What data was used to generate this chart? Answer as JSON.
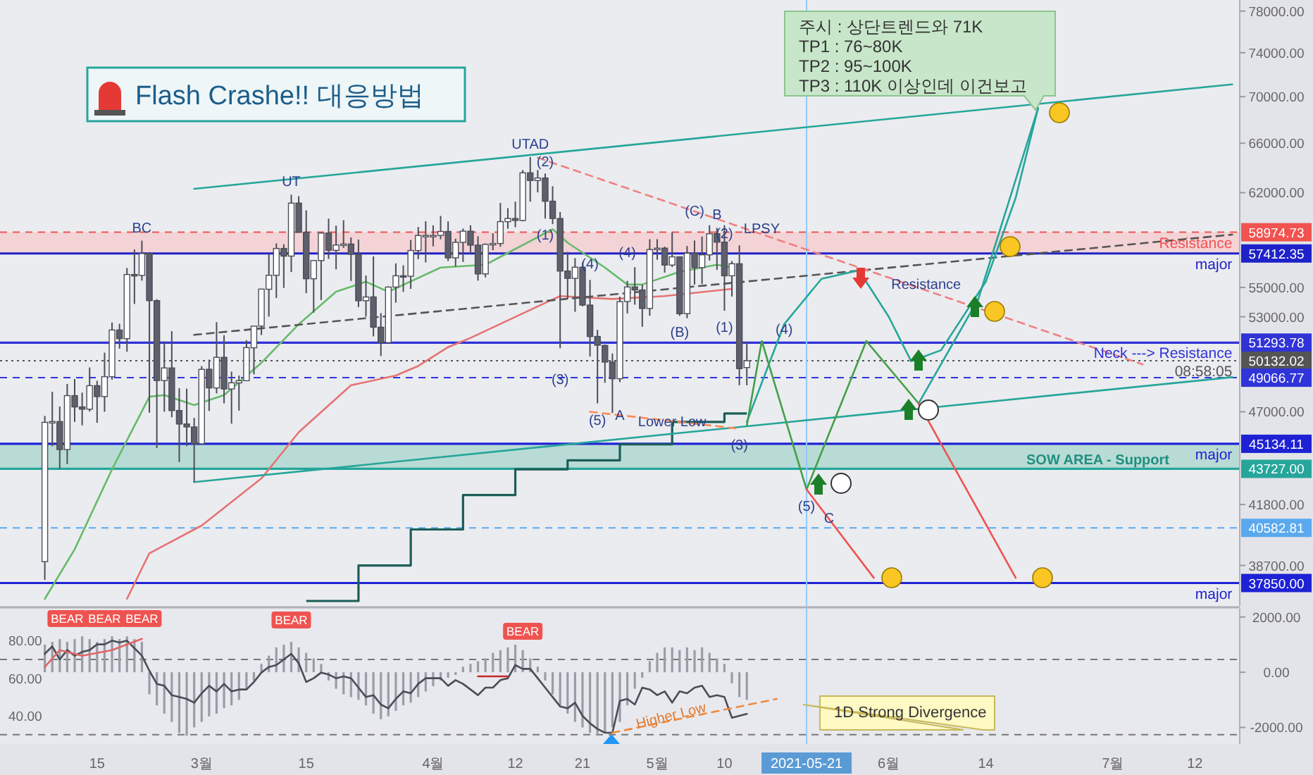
{
  "chart_data": [
    {
      "type": "candlestick",
      "title": "Flash Crashe!!  대응방법",
      "log": "y",
      "tick_labels": "y",
      "xlim": [
        "2021-02-02",
        "2021-07-18"
      ],
      "ylim": [
        36770,
        79100
      ],
      "yticks": [
        {
          "value": 78000,
          "label": "78000.00"
        },
        {
          "value": 74000,
          "label": "74000.00"
        },
        {
          "value": 70000,
          "label": "70000.00"
        },
        {
          "value": 66000,
          "label": "66000.00"
        },
        {
          "value": 62000,
          "label": "62000.00"
        },
        {
          "value": 55000,
          "label": "55000.00"
        },
        {
          "value": 53000,
          "label": "53000.00"
        },
        {
          "value": 47000,
          "label": "47000.00"
        },
        {
          "value": 41800,
          "label": "41800.00"
        },
        {
          "value": 38700,
          "label": "38700.00"
        }
      ],
      "x": [
        "2021-02-08",
        "2021-02-09",
        "2021-02-10",
        "2021-02-11",
        "2021-02-12",
        "2021-02-13",
        "2021-02-14",
        "2021-02-15",
        "2021-02-16",
        "2021-02-17",
        "2021-02-18",
        "2021-02-19",
        "2021-02-20",
        "2021-02-21",
        "2021-02-22",
        "2021-02-23",
        "2021-02-24",
        "2021-02-25",
        "2021-02-26",
        "2021-02-27",
        "2021-02-28",
        "2021-03-01",
        "2021-03-02",
        "2021-03-03",
        "2021-03-04",
        "2021-03-05",
        "2021-03-06",
        "2021-03-07",
        "2021-03-08",
        "2021-03-09",
        "2021-03-10",
        "2021-03-11",
        "2021-03-12",
        "2021-03-13",
        "2021-03-14",
        "2021-03-15",
        "2021-03-16",
        "2021-03-17",
        "2021-03-18",
        "2021-03-19",
        "2021-03-20",
        "2021-03-21",
        "2021-03-22",
        "2021-03-23",
        "2021-03-24",
        "2021-03-25",
        "2021-03-26",
        "2021-03-27",
        "2021-03-28",
        "2021-03-29",
        "2021-03-30",
        "2021-03-31",
        "2021-04-01",
        "2021-04-02",
        "2021-04-03",
        "2021-04-04",
        "2021-04-05",
        "2021-04-06",
        "2021-04-07",
        "2021-04-08",
        "2021-04-09",
        "2021-04-10",
        "2021-04-11",
        "2021-04-12",
        "2021-04-13",
        "2021-04-14",
        "2021-04-15",
        "2021-04-16",
        "2021-04-17",
        "2021-04-18",
        "2021-04-19",
        "2021-04-20",
        "2021-04-21",
        "2021-04-22",
        "2021-04-23",
        "2021-04-24",
        "2021-04-25",
        "2021-04-26",
        "2021-04-27",
        "2021-04-28",
        "2021-04-29",
        "2021-04-30",
        "2021-05-01",
        "2021-05-02",
        "2021-05-03",
        "2021-05-04",
        "2021-05-05",
        "2021-05-06",
        "2021-05-07",
        "2021-05-08",
        "2021-05-09",
        "2021-05-10",
        "2021-05-11",
        "2021-05-12",
        "2021-05-13"
      ],
      "ohlc": [
        [
          38886,
          46750,
          38000,
          46374
        ],
        [
          46374,
          48200,
          45000,
          46420
        ],
        [
          46420,
          47310,
          43727,
          44807
        ],
        [
          44807,
          48678,
          43994,
          47969
        ],
        [
          47969,
          48985,
          46400,
          47287
        ],
        [
          47288,
          48150,
          46202,
          47153
        ],
        [
          47153,
          49707,
          47014,
          48577
        ],
        [
          48577,
          48876,
          46347,
          47911
        ],
        [
          47911,
          50645,
          47000,
          49133
        ],
        [
          49133,
          52619,
          48947,
          52119
        ],
        [
          52117,
          52530,
          50901,
          51552
        ],
        [
          51552,
          56368,
          50710,
          55906
        ],
        [
          55906,
          57700,
          53863,
          55841
        ],
        [
          55842,
          58352,
          55477,
          57408
        ],
        [
          57412,
          57508,
          46943,
          54087
        ],
        [
          54087,
          54183,
          44892,
          48891
        ],
        [
          48891,
          51374,
          47003,
          49676
        ],
        [
          49677,
          52041,
          46674,
          47073
        ],
        [
          47074,
          48424,
          44106,
          46276
        ],
        [
          46277,
          48395,
          45000,
          46106
        ],
        [
          46104,
          46638,
          43000,
          45135
        ],
        [
          45134,
          49790,
          45115,
          49587
        ],
        [
          49595,
          50200,
          47047,
          48440
        ],
        [
          48436,
          52640,
          48100,
          50349
        ],
        [
          50349,
          51773,
          47500,
          48374
        ],
        [
          48375,
          49448,
          46300,
          48751
        ],
        [
          48746,
          49200,
          47070,
          48882
        ],
        [
          48882,
          51450,
          48882,
          50971
        ],
        [
          50959,
          52402,
          49274,
          52375
        ],
        [
          52376,
          54900,
          51789,
          54884
        ],
        [
          54874,
          57387,
          53005,
          55851
        ],
        [
          55851,
          58150,
          54272,
          57773
        ],
        [
          57773,
          58081,
          54962,
          57221
        ],
        [
          57222,
          61844,
          56078,
          61188
        ],
        [
          61188,
          61724,
          58966,
          58968
        ],
        [
          58976,
          60633,
          54600,
          55605
        ],
        [
          55605,
          56938,
          53271,
          56900
        ],
        [
          56900,
          58981,
          54120,
          58912
        ],
        [
          58912,
          60000,
          57023,
          57648
        ],
        [
          57641,
          59468,
          56270,
          58030
        ],
        [
          58030,
          59880,
          57820,
          58102
        ],
        [
          58101,
          58589,
          55450,
          57351
        ],
        [
          57351,
          58430,
          53650,
          54083
        ],
        [
          54084,
          55830,
          53000,
          54340
        ],
        [
          54342,
          57200,
          51700,
          52303
        ],
        [
          52303,
          53240,
          50427,
          51293
        ],
        [
          51293,
          55073,
          51214,
          55025
        ],
        [
          55026,
          56700,
          53950,
          55817
        ],
        [
          55817,
          56559,
          54691,
          55777
        ],
        [
          55782,
          58400,
          54900,
          57628
        ],
        [
          57628,
          59368,
          57000,
          58730
        ],
        [
          58731,
          59800,
          56769,
          58736
        ],
        [
          58736,
          59490,
          57935,
          58736
        ],
        [
          58736,
          60200,
          58450,
          59031
        ],
        [
          59031,
          59791,
          56863,
          57094
        ],
        [
          57095,
          58493,
          56478,
          58226
        ],
        [
          58227,
          59247,
          56800,
          59054
        ],
        [
          59054,
          59496,
          57413,
          58020
        ],
        [
          58020,
          58678,
          55473,
          55948
        ],
        [
          55947,
          58153,
          55700,
          58077
        ],
        [
          58077,
          58894,
          57654,
          58142
        ],
        [
          58142,
          61200,
          57903,
          59769
        ],
        [
          59770,
          60800,
          59238,
          60007
        ],
        [
          60002,
          61300,
          59350,
          59861
        ],
        [
          59861,
          63800,
          59791,
          63575
        ],
        [
          63576,
          64854,
          61301,
          62959
        ],
        [
          62960,
          63800,
          62020,
          63160
        ],
        [
          63159,
          63520,
          60000,
          61334
        ],
        [
          61334,
          62506,
          59580,
          60006
        ],
        [
          60007,
          60499,
          50931,
          56150
        ],
        [
          56150,
          57526,
          54221,
          55633
        ],
        [
          55633,
          57076,
          53329,
          56425
        ],
        [
          56425,
          56757,
          53695,
          53787
        ],
        [
          53787,
          55521,
          50400,
          51690
        ],
        [
          51695,
          52130,
          47500,
          51125
        ],
        [
          51110,
          51167,
          48753,
          50047
        ],
        [
          50048,
          50591,
          46930,
          49004
        ],
        [
          49004,
          54356,
          48800,
          54021
        ],
        [
          54030,
          55460,
          53222,
          55033
        ],
        [
          55033,
          56428,
          53813,
          54824
        ],
        [
          54824,
          55195,
          52330,
          53555
        ],
        [
          53555,
          58458,
          53068,
          57697
        ],
        [
          57697,
          58458,
          56956,
          57797
        ],
        [
          57798,
          57911,
          56035,
          56578
        ],
        [
          56578,
          58981,
          56435,
          57169
        ],
        [
          57169,
          57200,
          53057,
          53200
        ],
        [
          53205,
          57963,
          52900,
          57436
        ],
        [
          57436,
          58360,
          55200,
          56393
        ],
        [
          56393,
          58650,
          55241,
          57314
        ],
        [
          57315,
          59500,
          56900,
          58862
        ],
        [
          58866,
          59300,
          56235,
          58240
        ],
        [
          58240,
          59500,
          53400,
          55816
        ],
        [
          55816,
          56862,
          54370,
          56670
        ],
        [
          56671,
          58000,
          48600,
          49631
        ],
        [
          49700,
          51300,
          48600,
          50132
        ]
      ],
      "series": [
        {
          "type": "line",
          "color": "#66bb6a",
          "x": [
            "2021-02-08",
            "2021-02-12",
            "2021-02-17",
            "2021-02-22",
            "2021-02-24",
            "2021-02-28",
            "2021-03-04",
            "2021-03-09",
            "2021-03-14",
            "2021-03-19",
            "2021-03-23",
            "2021-03-26",
            "2021-04-02",
            "2021-04-08",
            "2021-04-17",
            "2021-04-19",
            "2021-04-24",
            "2021-04-27",
            "2021-04-29",
            "2021-05-04",
            "2021-05-09",
            "2021-05-11"
          ],
          "values": [
            37100,
            39500,
            43700,
            47900,
            48000,
            47400,
            48000,
            50000,
            52500,
            54700,
            55400,
            54700,
            56400,
            56600,
            59200,
            58200,
            56400,
            55200,
            55200,
            56100,
            56600,
            56400
          ]
        },
        {
          "type": "line",
          "color": "#e57373",
          "x": [
            "2021-02-19",
            "2021-02-22",
            "2021-03-01",
            "2021-03-09",
            "2021-03-14",
            "2021-03-21",
            "2021-03-27",
            "2021-03-30",
            "2021-04-03",
            "2021-04-06",
            "2021-04-15",
            "2021-04-18",
            "2021-04-25",
            "2021-05-02",
            "2021-05-11"
          ],
          "values": [
            37100,
            39300,
            40700,
            43200,
            45800,
            48600,
            49200,
            49800,
            51000,
            51600,
            53700,
            54400,
            54200,
            54400,
            54900
          ]
        },
        {
          "type": "step",
          "color": "#1b5e57",
          "x": [
            "2021-03-15",
            "2021-03-22",
            "2021-03-29",
            "2021-04-05",
            "2021-04-12",
            "2021-04-19",
            "2021-04-26",
            "2021-05-03",
            "2021-05-10",
            "2021-05-13"
          ],
          "values": [
            37000,
            38700,
            40500,
            42300,
            43700,
            44200,
            45100,
            46400,
            46900,
            46900
          ]
        },
        {
          "type": "line",
          "color": "#26a69a",
          "x": [
            "2021-02-28",
            "2021-07-17"
          ],
          "values": [
            62300,
            71100
          ]
        },
        {
          "type": "line",
          "color": "#26a69a",
          "x": [
            "2021-02-28",
            "2021-07-17"
          ],
          "values": [
            43000,
            49100
          ]
        },
        {
          "type": "line",
          "color": "#555555",
          "line_style": "dashed",
          "x": [
            "2021-02-28",
            "2021-07-17"
          ],
          "values": [
            51800,
            58800
          ]
        },
        {
          "type": "line",
          "color": "#f08080",
          "line_style": "dashed",
          "x": [
            "2021-04-15",
            "2021-07-05"
          ],
          "values": [
            64800,
            49900
          ]
        },
        {
          "type": "line",
          "color": "#ff8a50",
          "line_style": "dashed",
          "x": [
            "2021-04-22",
            "2021-05-12"
          ],
          "values": [
            47000,
            46000
          ]
        },
        {
          "type": "line",
          "color": "#26a69a",
          "x": [
            "2021-05-13",
            "2021-05-18",
            "2021-05-23",
            "2021-05-28",
            "2021-06-01",
            "2021-06-04",
            "2021-06-08",
            "2021-06-14",
            "2021-06-18",
            "2021-06-21"
          ],
          "values": [
            46400,
            52500,
            55600,
            56200,
            53000,
            50100,
            50800,
            55400,
            61600,
            69000
          ]
        },
        {
          "type": "line",
          "color": "#26a69a",
          "x": [
            "2021-06-05",
            "2021-06-13",
            "2021-06-21"
          ],
          "values": [
            47500,
            54200,
            69000
          ]
        },
        {
          "type": "line",
          "color": "#43a047",
          "x": [
            "2021-05-13",
            "2021-05-15",
            "2021-05-21",
            "2021-05-29",
            "2021-06-05"
          ],
          "values": [
            46200,
            51400,
            42600,
            51400,
            47500
          ]
        },
        {
          "type": "line",
          "color": "#ef5350",
          "x": [
            "2021-05-21",
            "2021-05-30"
          ],
          "values": [
            42600,
            38100
          ]
        },
        {
          "type": "line",
          "color": "#ef5350",
          "x": [
            "2021-06-05",
            "2021-06-18"
          ],
          "values": [
            47500,
            38100
          ]
        }
      ],
      "bands": [
        {
          "axis": "y",
          "from": 57412.35,
          "to": 58974.73,
          "color": "#f3d3d6"
        },
        {
          "axis": "y",
          "from": 43727.0,
          "to": 45134.11,
          "color": "#b9dbd6",
          "label": "SOW AREA - Support"
        }
      ],
      "ref_lines": [
        {
          "axis": "y",
          "value": 58974.73,
          "label": "58974.73",
          "color": "#f05350",
          "line_style": "dashed"
        },
        {
          "axis": "y",
          "value": 57412.35,
          "label": "57412.35",
          "color": "#1e22c8"
        },
        {
          "axis": "y",
          "value": 51293.78,
          "label": "51293.78",
          "color": "#3033d6"
        },
        {
          "axis": "y",
          "value": 50132.02,
          "label": "50132.02",
          "color": "#555555",
          "line_style": "dotted"
        },
        {
          "axis": "y",
          "value": 49066.77,
          "label": "49066.77",
          "color": "#2f35d9",
          "line_style": "dashed"
        },
        {
          "axis": "y",
          "value": 45134.11,
          "label": "45134.11",
          "color": "#1e22d4"
        },
        {
          "axis": "y",
          "value": 43727.0,
          "label": "43727.00",
          "color": "#26a69a"
        },
        {
          "axis": "y",
          "value": 40582.81,
          "label": "40582.81",
          "color": "#5aa9ee",
          "line_style": "dashed"
        },
        {
          "axis": "y",
          "value": 37850.0,
          "label": "37850.00",
          "color": "#1e22d4"
        },
        {
          "axis": "x",
          "value": "2021-05-21",
          "color": "#90caf9"
        }
      ],
      "annotations": [
        "주시 :  상단트렌드와 71K",
        "TP1  :  76~80K",
        "TP2  :  95~100K",
        "TP3  :  110K 이상인데 이건보고",
        {
          "text": "BC",
          "x": "2021-02-21",
          "y": 58352
        },
        {
          "text": "UT",
          "x": "2021-03-13",
          "y": 61844
        },
        {
          "text": "UTAD",
          "x": "2021-04-14",
          "y": 64854
        },
        {
          "text": "LPSY",
          "x": "2021-05-15",
          "y": 59281
        },
        {
          "text": "(2)",
          "x": "2021-04-16",
          "y": 64500
        },
        {
          "text": "(1)",
          "x": "2021-04-16",
          "y": 58800
        },
        {
          "text": "(4)",
          "x": "2021-04-22",
          "y": 56700
        },
        {
          "text": "(3)",
          "x": "2021-04-18",
          "y": 49000
        },
        {
          "text": "(5)",
          "x": "2021-04-23",
          "y": 47500
        },
        {
          "text": "A",
          "x": "2021-04-26",
          "y": 46800
        },
        {
          "text": "(4)",
          "x": "2021-04-27",
          "y": 57500
        },
        {
          "text": "(C)",
          "x": "2021-05-06",
          "y": 60600
        },
        {
          "text": "B",
          "x": "2021-05-09",
          "y": 59300
        },
        {
          "text": "(2)",
          "x": "2021-05-10",
          "y": 58900
        },
        {
          "text": "(B)",
          "x": "2021-05-04",
          "y": 53057
        },
        {
          "text": "(1)",
          "x": "2021-05-10",
          "y": 53400
        },
        {
          "text": "(4)",
          "x": "2021-05-18",
          "y": 52200
        },
        {
          "text": "(3)",
          "x": "2021-05-12",
          "y": 45100
        },
        {
          "text": "(5)",
          "x": "2021-05-21",
          "y": 42600
        },
        {
          "text": "C",
          "x": "2021-05-24",
          "y": 41100
        },
        {
          "text": "Lower Low",
          "x": "2021-05-03",
          "y": 46450
        },
        {
          "text": "Resistance",
          "x": "2021-06-06",
          "y": 55235
        },
        {
          "text": "Resistance",
          "x": "2021-07-17",
          "y": 58974.73
        },
        {
          "text": "major",
          "x": "2021-07-17",
          "y": 57412.35
        },
        {
          "text": "Neck ---> Resistance",
          "x": "2021-07-17",
          "y": 51293.78
        },
        {
          "text": "08:58:05",
          "x": "2021-07-17",
          "y": 50132.02
        },
        {
          "text": "major",
          "x": "2021-07-17",
          "y": 45134.11
        },
        {
          "text": "major",
          "x": "2021-07-17",
          "y": 37850.0
        }
      ]
    },
    {
      "type": "line",
      "xlim": [
        "2021-02-02",
        "2021-07-18"
      ],
      "ylim": [
        25,
        97
      ],
      "y2lim": [
        -2600,
        2300
      ],
      "yticks": [
        {
          "value": 80,
          "label": "80.00"
        },
        {
          "value": 60,
          "label": "60.00"
        },
        {
          "value": 40,
          "label": "40.00"
        }
      ],
      "y2ticks": [
        {
          "value": 2000,
          "label": "2000.00"
        },
        {
          "value": 0,
          "label": "0.00"
        },
        {
          "value": -2000,
          "label": "-2000.00"
        }
      ],
      "xticks": [
        {
          "value": "2021-02-15",
          "label": "15"
        },
        {
          "value": "2021-03-01",
          "label": "3월"
        },
        {
          "value": "2021-03-15",
          "label": "15"
        },
        {
          "value": "2021-04-01",
          "label": "4월"
        },
        {
          "value": "2021-04-12",
          "label": "12"
        },
        {
          "value": "2021-04-21",
          "label": "21"
        },
        {
          "value": "2021-05-01",
          "label": "5월"
        },
        {
          "value": "2021-05-10",
          "label": "10"
        },
        {
          "value": "2021-06-01",
          "label": "6월"
        },
        {
          "value": "2021-06-14",
          "label": "14"
        },
        {
          "value": "2021-07-01",
          "label": "7월"
        },
        {
          "value": "2021-07-12",
          "label": "12"
        }
      ],
      "x": [
        "2021-02-08",
        "2021-02-09",
        "2021-02-10",
        "2021-02-11",
        "2021-02-12",
        "2021-02-13",
        "2021-02-14",
        "2021-02-15",
        "2021-02-16",
        "2021-02-17",
        "2021-02-18",
        "2021-02-19",
        "2021-02-20",
        "2021-02-21",
        "2021-02-22",
        "2021-02-23",
        "2021-02-24",
        "2021-02-25",
        "2021-02-26",
        "2021-02-27",
        "2021-02-28",
        "2021-03-01",
        "2021-03-02",
        "2021-03-03",
        "2021-03-04",
        "2021-03-05",
        "2021-03-06",
        "2021-03-07",
        "2021-03-08",
        "2021-03-09",
        "2021-03-10",
        "2021-03-11",
        "2021-03-12",
        "2021-03-13",
        "2021-03-14",
        "2021-03-15",
        "2021-03-16",
        "2021-03-17",
        "2021-03-18",
        "2021-03-19",
        "2021-03-20",
        "2021-03-21",
        "2021-03-22",
        "2021-03-23",
        "2021-03-24",
        "2021-03-25",
        "2021-03-26",
        "2021-03-27",
        "2021-03-28",
        "2021-03-29",
        "2021-03-30",
        "2021-03-31",
        "2021-04-01",
        "2021-04-02",
        "2021-04-03",
        "2021-04-04",
        "2021-04-05",
        "2021-04-06",
        "2021-04-07",
        "2021-04-08",
        "2021-04-09",
        "2021-04-10",
        "2021-04-11",
        "2021-04-12",
        "2021-04-13",
        "2021-04-14",
        "2021-04-15",
        "2021-04-16",
        "2021-04-17",
        "2021-04-18",
        "2021-04-19",
        "2021-04-20",
        "2021-04-21",
        "2021-04-22",
        "2021-04-23",
        "2021-04-24",
        "2021-04-25",
        "2021-04-26",
        "2021-04-27",
        "2021-04-28",
        "2021-04-29",
        "2021-04-30",
        "2021-05-01",
        "2021-05-02",
        "2021-05-03",
        "2021-05-04",
        "2021-05-05",
        "2021-05-06",
        "2021-05-07",
        "2021-05-08",
        "2021-05-09",
        "2021-05-10",
        "2021-05-11",
        "2021-05-12",
        "2021-05-13"
      ],
      "series": [
        {
          "type": "bar",
          "axis": "y2",
          "color": "#9a9ca6",
          "values": [
            1000,
            1100,
            1200,
            1100,
            1200,
            1300,
            1200,
            1100,
            1200,
            1300,
            1200,
            1300,
            1200,
            1100,
            -800,
            -1200,
            -1500,
            -1800,
            -2200,
            -2300,
            -2000,
            -1800,
            -1600,
            -1500,
            -1300,
            -1200,
            -1000,
            -600,
            -300,
            300,
            600,
            900,
            1000,
            1100,
            900,
            700,
            500,
            300,
            -300,
            -600,
            -800,
            -900,
            -1000,
            -1200,
            -1500,
            -1700,
            -1600,
            -1400,
            -1200,
            -1100,
            -900,
            -700,
            -500,
            -300,
            -200,
            -100,
            200,
            300,
            400,
            500,
            700,
            800,
            900,
            1000,
            800,
            500,
            200,
            -300,
            -800,
            -1200,
            -1500,
            -1800,
            -2000,
            -2200,
            -2300,
            -2200,
            -2000,
            -1800,
            -1200,
            -600,
            -200,
            400,
            700,
            900,
            900,
            800,
            900,
            800,
            900,
            700,
            500,
            300,
            -400,
            -900,
            -1000
          ]
        },
        {
          "type": "line",
          "color": "#4a4d57",
          "values": [
            73,
            77,
            70,
            75,
            72,
            74,
            75,
            78,
            78,
            80,
            79,
            80,
            76,
            72,
            64,
            57,
            56,
            51,
            50,
            49,
            47,
            52,
            56,
            53,
            57,
            53,
            54,
            54,
            58,
            63,
            66,
            67,
            70,
            73,
            68,
            58,
            60,
            63,
            62,
            60,
            61,
            60,
            55,
            50,
            51,
            46,
            44,
            49,
            53,
            52,
            57,
            60,
            60,
            60,
            56,
            59,
            57,
            54,
            51,
            55,
            55,
            59,
            60,
            67,
            65,
            65,
            60,
            55,
            50,
            45,
            44,
            47,
            40,
            36,
            33,
            31,
            31,
            48,
            49,
            46,
            55,
            54,
            51,
            53,
            47,
            53,
            52,
            55,
            56,
            50,
            51,
            50,
            39,
            40,
            41
          ]
        },
        {
          "type": "line",
          "color": "#e06666",
          "x": [
            "2021-02-08",
            "2021-02-10",
            "2021-02-13",
            "2021-02-17",
            "2021-02-21"
          ],
          "values": [
            66,
            75,
            72,
            75,
            81
          ]
        },
        {
          "type": "line",
          "color": "#c62828",
          "x": [
            "2021-04-07",
            "2021-04-11"
          ],
          "values": [
            61,
            61
          ]
        },
        {
          "type": "line",
          "color": "#ef8a3c",
          "line_style": "dashed",
          "x": [
            "2021-04-25",
            "2021-05-17"
          ],
          "values": [
            31,
            49
          ]
        }
      ],
      "ref_lines": [
        {
          "axis": "y",
          "value": 70,
          "color": "#777777",
          "line_style": "dashed"
        },
        {
          "axis": "y",
          "value": 30,
          "color": "#777777",
          "line_style": "dashed"
        },
        {
          "axis": "x",
          "value": "2021-05-21",
          "label": "2021-05-21",
          "color": "#90caf9"
        }
      ],
      "annotations": [
        "1D Strong Divergence",
        {
          "text": "BEAR",
          "x": "2021-02-11",
          "y": 75
        },
        {
          "text": "BEAR",
          "x": "2021-02-16",
          "y": 78
        },
        {
          "text": "BEAR",
          "x": "2021-02-21",
          "y": 80
        },
        {
          "text": "BEAR",
          "x": "2021-03-13",
          "y": 73
        },
        {
          "text": "BEAR",
          "x": "2021-04-13",
          "y": 67
        },
        {
          "text": "Higher Low",
          "x": "2021-05-03",
          "y": 40
        }
      ]
    }
  ]
}
